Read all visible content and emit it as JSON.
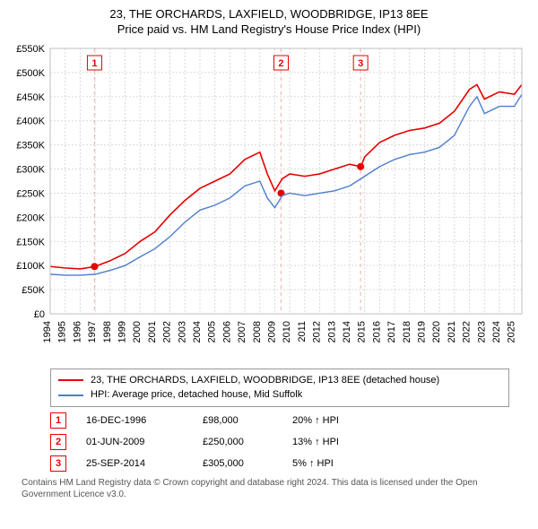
{
  "title_line1": "23, THE ORCHARDS, LAXFIELD, WOODBRIDGE, IP13 8EE",
  "title_line2": "Price paid vs. HM Land Registry's House Price Index (HPI)",
  "chart": {
    "type": "line",
    "background_color": "#ffffff",
    "plot_border_color": "#bfbfbf",
    "grid_color": "#d9d9d9",
    "grid_dash": "2,2",
    "axis_text_color": "#000000",
    "tick_fontsize": 11,
    "x_years": [
      1994,
      1995,
      1996,
      1997,
      1998,
      1999,
      2000,
      2001,
      2002,
      2003,
      2004,
      2005,
      2006,
      2007,
      2008,
      2009,
      2010,
      2011,
      2012,
      2013,
      2014,
      2015,
      2016,
      2017,
      2018,
      2019,
      2020,
      2021,
      2022,
      2023,
      2024,
      2025
    ],
    "xlim": [
      1994,
      2025.5
    ],
    "y_ticks": [
      0,
      50000,
      100000,
      150000,
      200000,
      250000,
      300000,
      350000,
      400000,
      450000,
      500000,
      550000
    ],
    "y_tick_labels": [
      "£0",
      "£50K",
      "£100K",
      "£150K",
      "£200K",
      "£250K",
      "£300K",
      "£350K",
      "£400K",
      "£450K",
      "£500K",
      "£550K"
    ],
    "ylim": [
      0,
      550000
    ],
    "series": [
      {
        "id": "subject",
        "label": "23, THE ORCHARDS, LAXFIELD, WOODBRIDGE, IP13 8EE (detached house)",
        "color": "#e60000",
        "width": 1.6,
        "x": [
          1994,
          1995,
          1996,
          1997,
          1998,
          1999,
          2000,
          2001,
          2002,
          2003,
          2004,
          2005,
          2006,
          2007,
          2008,
          2008.5,
          2009,
          2009.5,
          2010,
          2011,
          2012,
          2013,
          2014,
          2014.75,
          2015,
          2016,
          2017,
          2018,
          2019,
          2020,
          2021,
          2022,
          2022.5,
          2023,
          2024,
          2025,
          2025.5
        ],
        "y": [
          98000,
          95000,
          93000,
          98000,
          110000,
          125000,
          150000,
          170000,
          205000,
          235000,
          260000,
          275000,
          290000,
          320000,
          335000,
          290000,
          255000,
          280000,
          290000,
          285000,
          290000,
          300000,
          310000,
          305000,
          325000,
          355000,
          370000,
          380000,
          385000,
          395000,
          420000,
          465000,
          475000,
          445000,
          460000,
          455000,
          475000
        ]
      },
      {
        "id": "hpi",
        "label": "HPI: Average price, detached house, Mid Suffolk",
        "color": "#4e7ecb",
        "width": 1.4,
        "x": [
          1994,
          1995,
          1996,
          1997,
          1998,
          1999,
          2000,
          2001,
          2002,
          2003,
          2004,
          2005,
          2006,
          2007,
          2008,
          2008.5,
          2009,
          2009.5,
          2010,
          2011,
          2012,
          2013,
          2014,
          2015,
          2016,
          2017,
          2018,
          2019,
          2020,
          2021,
          2022,
          2022.5,
          2023,
          2024,
          2025,
          2025.5
        ],
        "y": [
          82000,
          80000,
          80000,
          82000,
          90000,
          100000,
          118000,
          135000,
          160000,
          190000,
          215000,
          225000,
          240000,
          265000,
          275000,
          240000,
          220000,
          245000,
          250000,
          245000,
          250000,
          255000,
          265000,
          285000,
          305000,
          320000,
          330000,
          335000,
          345000,
          370000,
          430000,
          450000,
          415000,
          430000,
          430000,
          455000
        ]
      }
    ],
    "event_line_color": "#f4b8b8",
    "event_line_dash": "4,4",
    "event_box_border": "#e60000",
    "event_box_text": "#e60000",
    "marker_color": "#e60000",
    "marker_radius": 4,
    "events": [
      {
        "n": "1",
        "x": 1996.96,
        "date": "16-DEC-1996",
        "price": 98000,
        "price_label": "£98,000",
        "delta": "20% ↑ HPI"
      },
      {
        "n": "2",
        "x": 2009.42,
        "date": "01-JUN-2009",
        "price": 250000,
        "price_label": "£250,000",
        "delta": "13% ↑ HPI"
      },
      {
        "n": "3",
        "x": 2014.73,
        "date": "25-SEP-2014",
        "price": 305000,
        "price_label": "£305,000",
        "delta": "5% ↑ HPI"
      }
    ]
  },
  "footnote": "Contains HM Land Registry data © Crown copyright and database right 2024. This data is licensed under the Open Government Licence v3.0."
}
